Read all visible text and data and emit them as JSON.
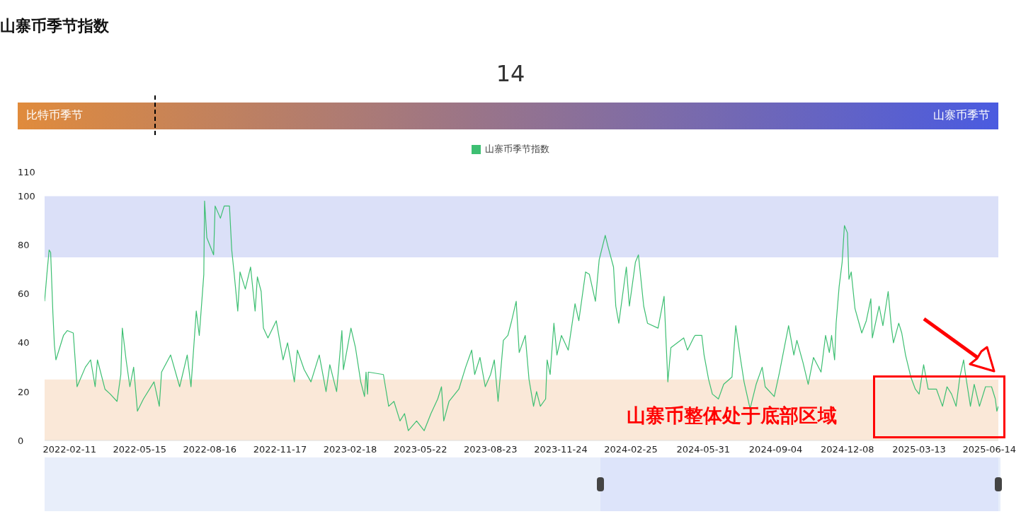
{
  "chart_data": [
    {
      "type": "other",
      "title": "山寨币季节指数",
      "values": [
        14
      ],
      "value_labels": [
        "14"
      ],
      "annotations": [
        "比特币季节",
        "山寨币季节"
      ]
    },
    {
      "type": "line",
      "legend": "top",
      "marker": "none",
      "line_style": "solid",
      "xlim": [
        "2022-01-09",
        "2025-06-26"
      ],
      "ylim": [
        0,
        110
      ],
      "yticks": [
        0,
        20,
        40,
        60,
        80,
        100,
        110
      ],
      "xticks": [
        "2022-02-11",
        "2022-05-15",
        "2022-08-16",
        "2022-11-17",
        "2023-02-18",
        "2023-05-22",
        "2023-08-23",
        "2023-11-24",
        "2024-02-25",
        "2024-05-31",
        "2024-09-04",
        "2024-12-08",
        "2025-03-13",
        "2025-06-14"
      ],
      "bands": [
        {
          "axis": "y",
          "from": 0,
          "to": 25,
          "color": "#fae8d8"
        },
        {
          "axis": "y",
          "from": 75,
          "to": 100,
          "color": "#dbe0f8"
        }
      ],
      "annotations": [
        "山寨币整体处于底部区域"
      ],
      "x": [
        "2022-01-09",
        "2022-01-12",
        "2022-01-15",
        "2022-01-17",
        "2022-01-20",
        "2022-01-22",
        "2022-01-24",
        "2022-02-03",
        "2022-02-08",
        "2022-02-16",
        "2022-02-21",
        "2022-03-04",
        "2022-03-11",
        "2022-03-17",
        "2022-03-20",
        "2022-03-30",
        "2022-04-06",
        "2022-04-15",
        "2022-04-20",
        "2022-04-22",
        "2022-04-27",
        "2022-05-02",
        "2022-05-07",
        "2022-05-12",
        "2022-05-20",
        "2022-06-03",
        "2022-06-10",
        "2022-06-13",
        "2022-06-25",
        "2022-07-07",
        "2022-07-17",
        "2022-07-22",
        "2022-07-29",
        "2022-08-02",
        "2022-08-08",
        "2022-08-09",
        "2022-08-12",
        "2022-08-21",
        "2022-08-23",
        "2022-08-30",
        "2022-09-04",
        "2022-09-11",
        "2022-09-14",
        "2022-09-17",
        "2022-09-22",
        "2022-09-25",
        "2022-10-02",
        "2022-10-09",
        "2022-10-15",
        "2022-10-18",
        "2022-10-23",
        "2022-10-26",
        "2022-11-01",
        "2022-11-12",
        "2022-11-21",
        "2022-11-27",
        "2022-12-06",
        "2022-12-10",
        "2022-12-19",
        "2022-12-28",
        "2023-01-08",
        "2023-01-17",
        "2023-01-22",
        "2023-01-31",
        "2023-02-07",
        "2023-02-09",
        "2023-02-19",
        "2023-02-25",
        "2023-03-04",
        "2023-03-09",
        "2023-03-11",
        "2023-03-13",
        "2023-03-14",
        "2023-04-03",
        "2023-04-10",
        "2023-04-17",
        "2023-04-25",
        "2023-05-01",
        "2023-05-06",
        "2023-05-17",
        "2023-05-27",
        "2023-06-05",
        "2023-06-14",
        "2023-06-19",
        "2023-06-22",
        "2023-06-29",
        "2023-07-12",
        "2023-07-21",
        "2023-07-29",
        "2023-08-02",
        "2023-08-09",
        "2023-08-16",
        "2023-08-23",
        "2023-08-28",
        "2023-09-02",
        "2023-09-09",
        "2023-09-15",
        "2023-09-20",
        "2023-09-26",
        "2023-09-30",
        "2023-10-08",
        "2023-10-13",
        "2023-10-19",
        "2023-10-23",
        "2023-10-28",
        "2023-11-04",
        "2023-11-06",
        "2023-11-10",
        "2023-11-15",
        "2023-11-19",
        "2023-11-25",
        "2023-12-04",
        "2023-12-13",
        "2023-12-18",
        "2023-12-27",
        "2024-01-01",
        "2024-01-09",
        "2024-01-14",
        "2024-01-22",
        "2024-01-26",
        "2024-02-02",
        "2024-02-05",
        "2024-02-09",
        "2024-02-19",
        "2024-02-23",
        "2024-03-02",
        "2024-03-06",
        "2024-03-13",
        "2024-03-18",
        "2024-04-01",
        "2024-04-09",
        "2024-04-14",
        "2024-04-18",
        "2024-05-05",
        "2024-05-10",
        "2024-05-18",
        "2024-05-20",
        "2024-05-29",
        "2024-06-01",
        "2024-06-07",
        "2024-06-12",
        "2024-06-20",
        "2024-06-27",
        "2024-07-08",
        "2024-07-13",
        "2024-07-19",
        "2024-07-24",
        "2024-08-01",
        "2024-08-09",
        "2024-08-17",
        "2024-08-21",
        "2024-09-02",
        "2024-09-09",
        "2024-09-21",
        "2024-09-28",
        "2024-10-02",
        "2024-10-10",
        "2024-10-17",
        "2024-10-24",
        "2024-11-03",
        "2024-11-09",
        "2024-11-14",
        "2024-11-17",
        "2024-11-21",
        "2024-11-23",
        "2024-11-27",
        "2024-12-01",
        "2024-12-04",
        "2024-12-08",
        "2024-12-10",
        "2024-12-13",
        "2024-12-18",
        "2024-12-27",
        "2025-01-02",
        "2025-01-08",
        "2025-01-10",
        "2025-01-19",
        "2025-01-24",
        "2025-01-31",
        "2025-02-04",
        "2025-02-07",
        "2025-02-14",
        "2025-02-18",
        "2025-02-23",
        "2025-03-02",
        "2025-03-08",
        "2025-03-13",
        "2025-03-19",
        "2025-03-25",
        "2025-04-05",
        "2025-04-13",
        "2025-04-19",
        "2025-04-25",
        "2025-05-01",
        "2025-05-06",
        "2025-05-11",
        "2025-05-13",
        "2025-05-20",
        "2025-05-25",
        "2025-06-01",
        "2025-06-09",
        "2025-06-17",
        "2025-06-22",
        "2025-06-24",
        "2025-06-26"
      ],
      "series": [
        {
          "name": "山寨币季节指数",
          "color": "#3dbf72",
          "values": [
            57,
            68,
            78,
            77,
            52,
            39,
            33,
            43,
            45,
            44,
            22,
            30,
            33,
            22,
            33,
            21,
            19,
            16,
            27,
            46,
            33,
            22,
            30,
            12,
            17,
            24,
            14,
            28,
            35,
            22,
            35,
            22,
            53,
            43,
            68,
            98,
            83,
            76,
            96,
            91,
            96,
            96,
            78,
            69,
            53,
            69,
            62,
            71,
            53,
            67,
            61,
            46,
            42,
            49,
            33,
            40,
            24,
            37,
            29,
            24,
            35,
            20,
            31,
            20,
            45,
            29,
            46,
            38,
            24,
            18,
            28,
            19,
            28,
            27,
            14,
            16,
            8,
            11,
            4,
            8,
            4,
            11,
            17,
            22,
            8,
            16,
            21,
            30,
            37,
            27,
            34,
            22,
            27,
            33,
            16,
            41,
            43,
            49,
            57,
            36,
            43,
            25,
            14,
            20,
            14,
            17,
            33,
            27,
            48,
            35,
            43,
            37,
            56,
            49,
            69,
            68,
            57,
            74,
            84,
            79,
            71,
            55,
            48,
            71,
            55,
            73,
            76,
            55,
            48,
            46,
            59,
            24,
            38,
            42,
            37,
            42,
            43,
            43,
            35,
            25,
            19,
            17,
            23,
            26,
            47,
            34,
            24,
            13,
            23,
            30,
            22,
            18,
            28,
            47,
            35,
            41,
            32,
            23,
            34,
            28,
            43,
            36,
            43,
            33,
            48,
            63,
            73,
            88,
            85,
            66,
            69,
            54,
            44,
            49,
            58,
            42,
            55,
            47,
            61,
            47,
            40,
            48,
            44,
            35,
            26,
            21,
            19,
            31,
            21,
            21,
            14,
            22,
            19,
            14,
            26,
            33,
            28,
            14,
            23,
            14,
            22,
            22,
            17,
            12,
            14
          ]
        }
      ]
    }
  ]
}
